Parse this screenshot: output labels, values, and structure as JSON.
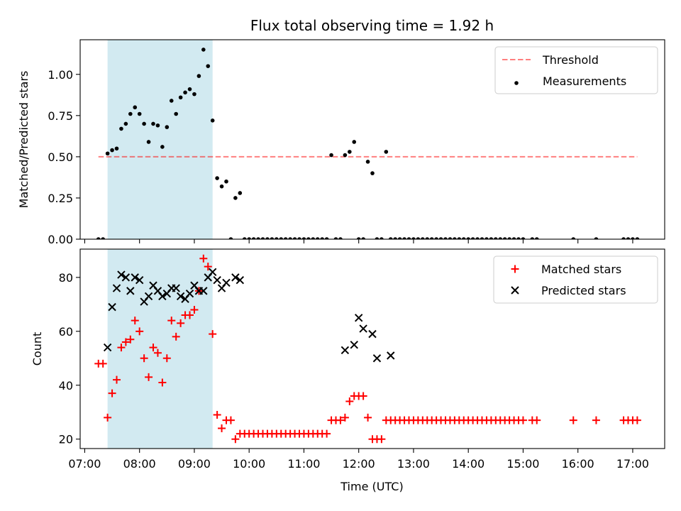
{
  "figure": {
    "title": "Flux total observing time = 1.92 h",
    "xlabel": "Time (UTC)"
  },
  "chart_data": [
    {
      "type": "scatter",
      "ylabel": "Matched/Predicted stars",
      "xlim": [
        "06:55",
        "17:35"
      ],
      "ylim": [
        0,
        1.21
      ],
      "yticks": [
        0.0,
        0.25,
        0.5,
        0.75,
        1.0
      ],
      "ytick_labels": [
        "0.00",
        "0.25",
        "0.50",
        "0.75",
        "1.00"
      ],
      "shaded_interval": [
        "07:25",
        "09:20"
      ],
      "shade_color": "#add8e6",
      "legend_position": "upper right",
      "threshold": {
        "name": "Threshold",
        "y": 0.5,
        "x_range": [
          "07:15",
          "17:05"
        ],
        "color": "#ff0000",
        "style": "dashed"
      },
      "series": [
        {
          "name": "Measurements",
          "color": "#000000",
          "marker": "dot",
          "x": [
            "07:15",
            "07:20",
            "07:25",
            "07:30",
            "07:35",
            "07:40",
            "07:45",
            "07:50",
            "07:55",
            "08:00",
            "08:05",
            "08:10",
            "08:15",
            "08:20",
            "08:25",
            "08:30",
            "08:35",
            "08:40",
            "08:45",
            "08:50",
            "08:55",
            "09:00",
            "09:05",
            "09:10",
            "09:15",
            "09:20",
            "09:25",
            "09:30",
            "09:35",
            "09:40",
            "09:45",
            "09:50",
            "09:55",
            "10:00",
            "10:05",
            "10:10",
            "10:15",
            "10:20",
            "10:25",
            "10:30",
            "10:35",
            "10:40",
            "10:45",
            "10:50",
            "10:55",
            "11:00",
            "11:05",
            "11:10",
            "11:15",
            "11:20",
            "11:25",
            "11:30",
            "11:35",
            "11:40",
            "11:45",
            "11:50",
            "11:55",
            "12:00",
            "12:05",
            "12:10",
            "12:15",
            "12:20",
            "12:25",
            "12:30",
            "12:35",
            "12:40",
            "12:45",
            "12:50",
            "12:55",
            "13:00",
            "13:05",
            "13:10",
            "13:15",
            "13:20",
            "13:25",
            "13:30",
            "13:35",
            "13:40",
            "13:45",
            "13:50",
            "13:55",
            "14:00",
            "14:05",
            "14:10",
            "14:15",
            "14:20",
            "14:25",
            "14:30",
            "14:35",
            "14:40",
            "14:45",
            "14:50",
            "14:55",
            "15:00",
            "15:10",
            "15:15",
            "15:55",
            "16:20",
            "16:50",
            "16:55",
            "17:00",
            "17:05"
          ],
          "y": [
            0.0,
            0.0,
            0.52,
            0.54,
            0.55,
            0.67,
            0.7,
            0.76,
            0.8,
            0.76,
            0.7,
            0.59,
            0.7,
            0.69,
            0.56,
            0.68,
            0.84,
            0.76,
            0.86,
            0.89,
            0.91,
            0.88,
            0.99,
            1.15,
            1.05,
            0.72,
            0.37,
            0.32,
            0.35,
            0.0,
            0.25,
            0.28,
            0.0,
            0.0,
            0.0,
            0.0,
            0.0,
            0.0,
            0.0,
            0.0,
            0.0,
            0.0,
            0.0,
            0.0,
            0.0,
            0.0,
            0.0,
            0.0,
            0.0,
            0.0,
            0.0,
            0.51,
            0.0,
            0.0,
            0.51,
            0.53,
            0.59,
            0.0,
            0.0,
            0.47,
            0.4,
            0.0,
            0.0,
            0.53,
            0.0,
            0.0,
            0.0,
            0.0,
            0.0,
            0.0,
            0.0,
            0.0,
            0.0,
            0.0,
            0.0,
            0.0,
            0.0,
            0.0,
            0.0,
            0.0,
            0.0,
            0.0,
            0.0,
            0.0,
            0.0,
            0.0,
            0.0,
            0.0,
            0.0,
            0.0,
            0.0,
            0.0,
            0.0,
            0.0,
            0.0,
            0.0,
            0.0,
            0.0,
            0.0,
            0.0,
            0.0,
            0.0
          ]
        }
      ]
    },
    {
      "type": "scatter",
      "ylabel": "Count",
      "xlim": [
        "06:55",
        "17:35"
      ],
      "ylim": [
        16.5,
        90.5
      ],
      "yticks": [
        20,
        40,
        60,
        80
      ],
      "ytick_labels": [
        "20",
        "40",
        "60",
        "80"
      ],
      "xticks": [
        "07:00",
        "08:00",
        "09:00",
        "10:00",
        "11:00",
        "12:00",
        "13:00",
        "14:00",
        "15:00",
        "16:00",
        "17:00"
      ],
      "shaded_interval": [
        "07:25",
        "09:20"
      ],
      "shade_color": "#add8e6",
      "legend_position": "upper right",
      "series": [
        {
          "name": "Matched stars",
          "color": "#ff0000",
          "marker": "plus",
          "x": [
            "07:15",
            "07:20",
            "07:25",
            "07:30",
            "07:35",
            "07:40",
            "07:45",
            "07:50",
            "07:55",
            "08:00",
            "08:05",
            "08:10",
            "08:15",
            "08:20",
            "08:25",
            "08:30",
            "08:35",
            "08:40",
            "08:45",
            "08:50",
            "08:55",
            "09:00",
            "09:05",
            "09:10",
            "09:15",
            "09:20",
            "09:25",
            "09:30",
            "09:35",
            "09:40",
            "09:45",
            "09:50",
            "09:55",
            "10:00",
            "10:05",
            "10:10",
            "10:15",
            "10:20",
            "10:25",
            "10:30",
            "10:35",
            "10:40",
            "10:45",
            "10:50",
            "10:55",
            "11:00",
            "11:05",
            "11:10",
            "11:15",
            "11:20",
            "11:25",
            "11:30",
            "11:35",
            "11:40",
            "11:45",
            "11:50",
            "11:55",
            "12:00",
            "12:05",
            "12:10",
            "12:15",
            "12:20",
            "12:25",
            "12:30",
            "12:35",
            "12:40",
            "12:45",
            "12:50",
            "12:55",
            "13:00",
            "13:05",
            "13:10",
            "13:15",
            "13:20",
            "13:25",
            "13:30",
            "13:35",
            "13:40",
            "13:45",
            "13:50",
            "13:55",
            "14:00",
            "14:05",
            "14:10",
            "14:15",
            "14:20",
            "14:25",
            "14:30",
            "14:35",
            "14:40",
            "14:45",
            "14:50",
            "14:55",
            "15:00",
            "15:10",
            "15:15",
            "15:55",
            "16:20",
            "16:50",
            "16:55",
            "17:00",
            "17:05"
          ],
          "y": [
            48,
            48,
            28,
            37,
            42,
            54,
            56,
            57,
            64,
            60,
            50,
            43,
            54,
            52,
            41,
            50,
            64,
            58,
            63,
            66,
            66,
            68,
            75,
            87,
            84,
            59,
            29,
            24,
            27,
            27,
            20,
            22,
            22,
            22,
            22,
            22,
            22,
            22,
            22,
            22,
            22,
            22,
            22,
            22,
            22,
            22,
            22,
            22,
            22,
            22,
            22,
            27,
            27,
            27,
            28,
            34,
            36,
            36,
            36,
            28,
            20,
            20,
            20,
            27,
            27,
            27,
            27,
            27,
            27,
            27,
            27,
            27,
            27,
            27,
            27,
            27,
            27,
            27,
            27,
            27,
            27,
            27,
            27,
            27,
            27,
            27,
            27,
            27,
            27,
            27,
            27,
            27,
            27,
            27,
            27,
            27,
            27,
            27,
            27,
            27,
            27,
            27
          ]
        },
        {
          "name": "Predicted stars",
          "color": "#000000",
          "marker": "x",
          "x": [
            "07:25",
            "07:30",
            "07:35",
            "07:40",
            "07:45",
            "07:50",
            "07:55",
            "08:00",
            "08:05",
            "08:10",
            "08:15",
            "08:20",
            "08:25",
            "08:30",
            "08:35",
            "08:40",
            "08:45",
            "08:50",
            "08:55",
            "09:00",
            "09:05",
            "09:10",
            "09:15",
            "09:20",
            "09:25",
            "09:30",
            "09:35",
            "09:45",
            "09:50",
            "11:45",
            "11:55",
            "12:00",
            "12:05",
            "12:15",
            "12:20",
            "12:35"
          ],
          "y": [
            54,
            69,
            76,
            81,
            80,
            75,
            80,
            79,
            71,
            73,
            77,
            75,
            73,
            74,
            76,
            76,
            73,
            72,
            74,
            77,
            75,
            75,
            80,
            82,
            79,
            76,
            78,
            80,
            79,
            53,
            55,
            65,
            61,
            59,
            50,
            51
          ]
        }
      ]
    }
  ]
}
